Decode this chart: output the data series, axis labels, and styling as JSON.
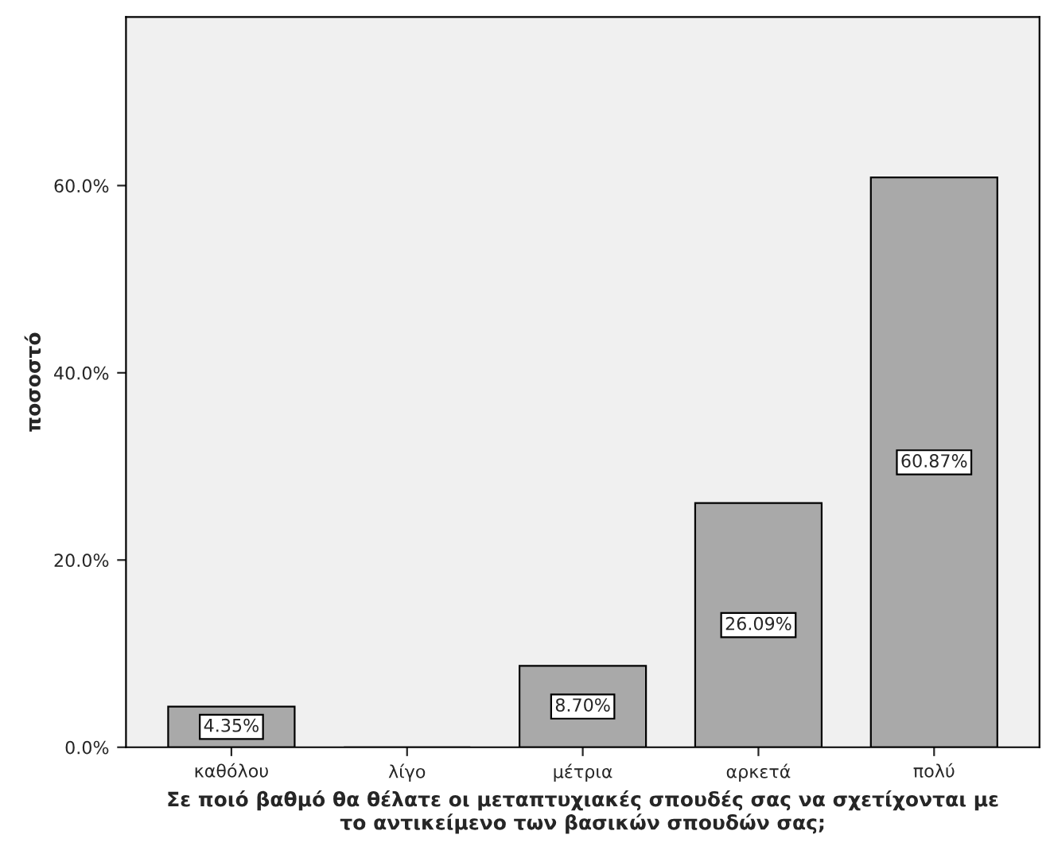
{
  "chart_data": {
    "type": "bar",
    "xlabel": "Σε ποιό βαθμό θα θέλατε οι μεταπτυχιακές σπουδές σας να σχετίχονται με\nτο αντικείμενο των βασικών σπουδών σας;",
    "ylabel": "ποσοστό",
    "categories": [
      "καθόλου",
      "λίγο",
      "μέτρια",
      "αρκετά",
      "πολύ"
    ],
    "values": [
      4.35,
      0,
      8.7,
      26.09,
      60.87
    ],
    "value_labels": [
      "4.35%",
      null,
      "8.70%",
      "26.09%",
      "60.87%"
    ],
    "color": "#a9a9a9",
    "ylim": [
      0,
      78
    ],
    "yticks": [
      {
        "value": 0,
        "label": "0.0%"
      },
      {
        "value": 20,
        "label": "20.0%"
      },
      {
        "value": 40,
        "label": "40.0%"
      },
      {
        "value": 60,
        "label": "60.0%"
      }
    ],
    "grid": false,
    "legend": false
  }
}
